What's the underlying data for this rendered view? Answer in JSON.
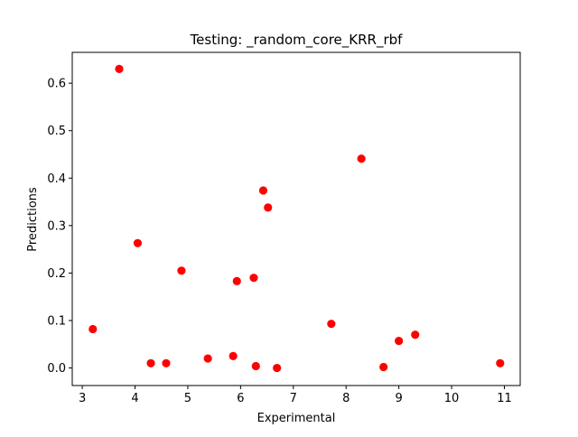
{
  "chart_data": {
    "type": "scatter",
    "title": "Testing: _random_core_KRR_rbf",
    "xlabel": "Experimental",
    "ylabel": "Predictions",
    "xlim": [
      2.81,
      11.3
    ],
    "ylim": [
      -0.037,
      0.665
    ],
    "xticks": [
      3,
      4,
      5,
      6,
      7,
      8,
      9,
      10,
      11
    ],
    "xtick_labels": [
      "3",
      "4",
      "5",
      "6",
      "7",
      "8",
      "9",
      "10",
      "11"
    ],
    "yticks": [
      0.0,
      0.1,
      0.2,
      0.3,
      0.4,
      0.5,
      0.6
    ],
    "ytick_labels": [
      "0.0",
      "0.1",
      "0.2",
      "0.3",
      "0.4",
      "0.5",
      "0.6"
    ],
    "grid": false,
    "legend": "none",
    "marker_color": "#ff0000",
    "series": [
      {
        "points": [
          {
            "x": 3.2,
            "y": 0.082
          },
          {
            "x": 3.7,
            "y": 0.63
          },
          {
            "x": 4.05,
            "y": 0.263
          },
          {
            "x": 4.3,
            "y": 0.01
          },
          {
            "x": 4.59,
            "y": 0.01
          },
          {
            "x": 4.88,
            "y": 0.205
          },
          {
            "x": 5.38,
            "y": 0.02
          },
          {
            "x": 5.86,
            "y": 0.025
          },
          {
            "x": 5.93,
            "y": 0.183
          },
          {
            "x": 6.25,
            "y": 0.19
          },
          {
            "x": 6.29,
            "y": 0.004
          },
          {
            "x": 6.43,
            "y": 0.374
          },
          {
            "x": 6.52,
            "y": 0.338
          },
          {
            "x": 6.69,
            "y": 0.0
          },
          {
            "x": 7.72,
            "y": 0.093
          },
          {
            "x": 8.29,
            "y": 0.441
          },
          {
            "x": 8.71,
            "y": 0.002
          },
          {
            "x": 9.0,
            "y": 0.057
          },
          {
            "x": 9.31,
            "y": 0.07
          },
          {
            "x": 10.92,
            "y": 0.01
          }
        ]
      }
    ]
  }
}
